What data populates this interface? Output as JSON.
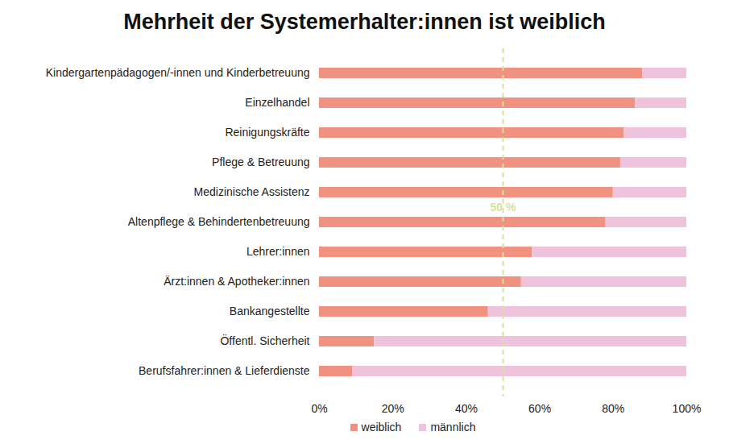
{
  "chart_data": {
    "type": "bar",
    "orientation": "horizontal",
    "stacked": true,
    "title": "Mehrheit der Systemerhalter:innen ist weiblich",
    "categories": [
      "Kindergartenpädagogen/-innen und Kinderbetreuung",
      "Einzelhandel",
      "Reinigungskräfte",
      "Pflege & Betreuung",
      "Medizinische Assistenz",
      "Altenpflege & Behindertenbetreuung",
      "Lehrer:innen",
      "Ärzt:innen & Apotheker:innen",
      "Bankangestellte",
      "Öffentl. Sicherheit",
      "Berufsfahrer:innen & Lieferdienste"
    ],
    "series": [
      {
        "name": "weiblich",
        "color": "#f0927f",
        "values": [
          88,
          86,
          83,
          82,
          80,
          78,
          58,
          55,
          46,
          15,
          9
        ]
      },
      {
        "name": "männlich",
        "color": "#f0c3dc",
        "values": [
          12,
          14,
          17,
          18,
          20,
          22,
          42,
          45,
          54,
          85,
          91
        ]
      }
    ],
    "xlim": [
      0,
      100
    ],
    "xticks": [
      {
        "value": 0,
        "label": "0%"
      },
      {
        "value": 20,
        "label": "20%"
      },
      {
        "value": 40,
        "label": "40%"
      },
      {
        "value": 60,
        "label": "60%"
      },
      {
        "value": 80,
        "label": "80%"
      },
      {
        "value": 100,
        "label": "100%"
      }
    ],
    "annotations": [
      {
        "text": "50 %",
        "x": 50,
        "color": "#d5e29a",
        "line_style": "dashed"
      }
    ],
    "legend": "bottom",
    "grid": false
  }
}
